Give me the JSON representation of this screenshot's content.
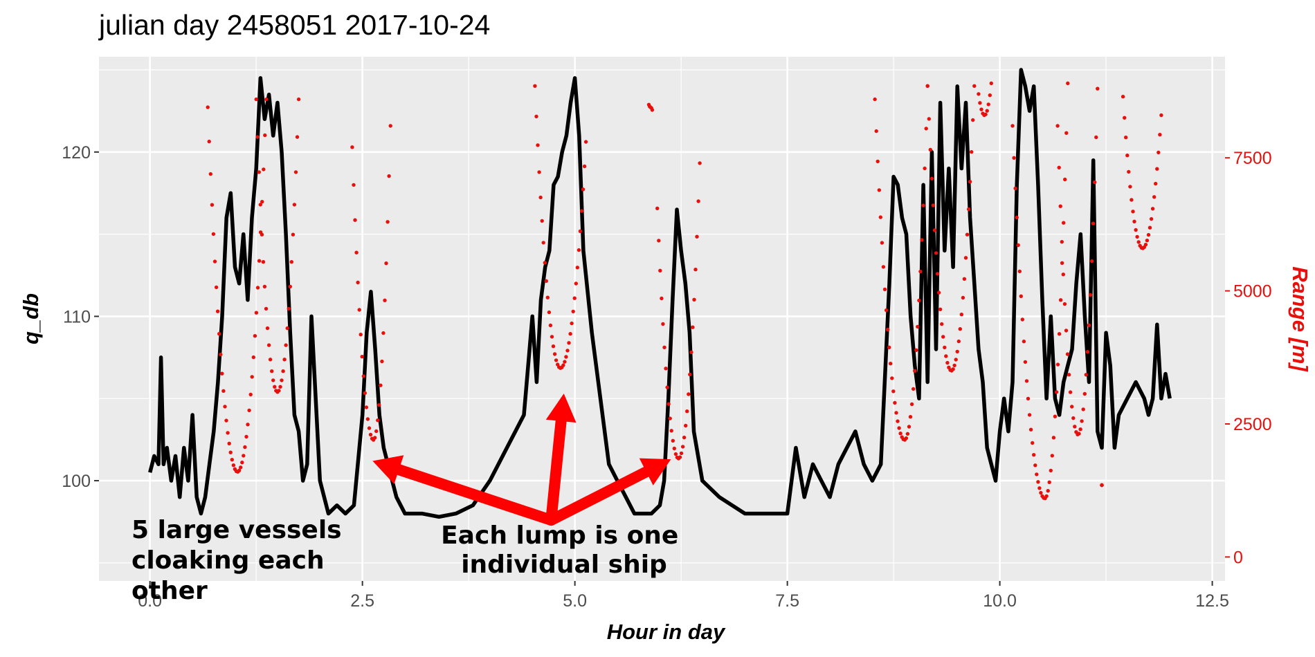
{
  "chart_data": {
    "type": "line",
    "title": "julian day 2458051 2017-10-24",
    "xlabel": "Hour in day",
    "ylabel": "q_db",
    "y2label": "Range [m]",
    "xlim": [
      -0.6,
      12.65
    ],
    "ylim": [
      93.9,
      125.8
    ],
    "y2lim": [
      -450,
      9400
    ],
    "xticks": [
      {
        "v": 0.0,
        "label": "0.0"
      },
      {
        "v": 2.5,
        "label": "2.5"
      },
      {
        "v": 5.0,
        "label": "5.0"
      },
      {
        "v": 7.5,
        "label": "7.5"
      },
      {
        "v": 10.0,
        "label": "10.0"
      },
      {
        "v": 12.5,
        "label": "12.5"
      }
    ],
    "yticks": [
      {
        "v": 100,
        "label": "100"
      },
      {
        "v": 110,
        "label": "110"
      },
      {
        "v": 120,
        "label": "120"
      }
    ],
    "y2ticks": [
      {
        "v": 0,
        "label": "0"
      },
      {
        "v": 2500,
        "label": "2500"
      },
      {
        "v": 5000,
        "label": "5000"
      },
      {
        "v": 7500,
        "label": "7500"
      }
    ],
    "grid": true,
    "colors": {
      "panel": "#ebebeb",
      "grid": "#ffffff",
      "line": "#000000",
      "points": "#e8100c",
      "arrow": "#ff0000",
      "right_axis": "#e8100c"
    },
    "series": [
      {
        "kind": "line",
        "axis": "left",
        "x": [
          0.0,
          0.05,
          0.1,
          0.13,
          0.16,
          0.2,
          0.25,
          0.3,
          0.35,
          0.4,
          0.45,
          0.5,
          0.55,
          0.6,
          0.65,
          0.7,
          0.75,
          0.8,
          0.85,
          0.9,
          0.95,
          1.0,
          1.05,
          1.1,
          1.15,
          1.2,
          1.25,
          1.3,
          1.35,
          1.4,
          1.45,
          1.5,
          1.55,
          1.6,
          1.65,
          1.7,
          1.75,
          1.8,
          1.85,
          1.9,
          2.0,
          2.1,
          2.2,
          2.3,
          2.4,
          2.5,
          2.55,
          2.6,
          2.65,
          2.7,
          2.75,
          2.8,
          2.9,
          3.0,
          3.2,
          3.4,
          3.6,
          3.8,
          4.0,
          4.2,
          4.4,
          4.5,
          4.55,
          4.6,
          4.65,
          4.7,
          4.75,
          4.8,
          4.85,
          4.9,
          4.95,
          5.0,
          5.05,
          5.1,
          5.2,
          5.3,
          5.4,
          5.5,
          5.6,
          5.7,
          5.8,
          5.9,
          6.0,
          6.05,
          6.1,
          6.15,
          6.2,
          6.25,
          6.3,
          6.35,
          6.4,
          6.5,
          6.7,
          7.0,
          7.3,
          7.5,
          7.6,
          7.7,
          7.8,
          7.9,
          8.0,
          8.1,
          8.2,
          8.3,
          8.4,
          8.5,
          8.6,
          8.7,
          8.75,
          8.8,
          8.85,
          8.9,
          8.95,
          9.0,
          9.05,
          9.1,
          9.15,
          9.2,
          9.25,
          9.3,
          9.35,
          9.4,
          9.45,
          9.5,
          9.55,
          9.6,
          9.65,
          9.7,
          9.75,
          9.8,
          9.85,
          9.9,
          9.95,
          10.0,
          10.05,
          10.1,
          10.15,
          10.2,
          10.25,
          10.3,
          10.35,
          10.4,
          10.45,
          10.5,
          10.55,
          10.6,
          10.65,
          10.7,
          10.75,
          10.8,
          10.85,
          10.9,
          10.95,
          11.0,
          11.05,
          11.1,
          11.15,
          11.2,
          11.25,
          11.3,
          11.35,
          11.4,
          11.5,
          11.6,
          11.7,
          11.75,
          11.8,
          11.85,
          11.9,
          11.95,
          12.0
        ],
        "y": [
          100.5,
          101.5,
          101.0,
          107.5,
          101.0,
          102.0,
          100.0,
          101.5,
          99.0,
          102.0,
          100.0,
          104.0,
          99.0,
          98.0,
          99.0,
          101.0,
          103.0,
          106.0,
          110.0,
          116.0,
          117.5,
          113.0,
          112.0,
          115.0,
          111.0,
          116.0,
          119.0,
          124.5,
          122.0,
          123.5,
          121.0,
          123.0,
          120.0,
          115.0,
          109.0,
          104.0,
          103.0,
          100.0,
          101.0,
          110.0,
          100.0,
          98.0,
          98.5,
          98.0,
          98.5,
          104.0,
          109.0,
          111.5,
          108.0,
          104.0,
          102.0,
          101.0,
          99.0,
          98.0,
          98.0,
          97.8,
          98.0,
          98.5,
          100.0,
          102.0,
          104.0,
          110.0,
          106.0,
          111.0,
          113.0,
          114.0,
          118.0,
          118.5,
          120.0,
          121.0,
          123.0,
          124.5,
          121.0,
          114.0,
          109.0,
          105.0,
          101.0,
          100.0,
          99.0,
          98.0,
          98.0,
          98.0,
          98.5,
          100.0,
          105.0,
          111.0,
          116.5,
          114.0,
          112.0,
          109.0,
          103.0,
          100.0,
          99.0,
          98.0,
          98.0,
          98.0,
          102.0,
          99.0,
          101.0,
          100.0,
          99.0,
          101.0,
          102.0,
          103.0,
          101.0,
          100.0,
          101.0,
          112.0,
          118.5,
          118.0,
          116.0,
          115.0,
          110.0,
          107.0,
          105.0,
          118.0,
          106.0,
          120.0,
          108.0,
          123.0,
          114.0,
          119.0,
          113.0,
          124.0,
          119.0,
          123.0,
          116.0,
          112.0,
          108.0,
          106.0,
          102.0,
          101.0,
          100.0,
          103.0,
          105.0,
          103.0,
          106.0,
          118.0,
          125.0,
          124.0,
          122.5,
          124.0,
          118.0,
          111.0,
          105.0,
          110.0,
          105.0,
          104.0,
          106.0,
          107.0,
          108.0,
          112.0,
          115.0,
          110.0,
          106.0,
          119.5,
          103.0,
          102.0,
          109.0,
          107.0,
          102.0,
          104.0,
          105.0,
          106.0,
          105.0,
          104.0,
          105.0,
          109.5,
          105.0,
          106.5,
          105.0
        ],
        "color": "#000000"
      },
      {
        "kind": "points",
        "axis": "right",
        "segments": [
          {
            "x": [
              0.68,
              1.03,
              1.37
            ],
            "y": [
              8450,
              1600,
              8600
            ]
          },
          {
            "x": [
              1.25,
              1.5,
              1.75
            ],
            "y": [
              8600,
              3100,
              8600
            ]
          },
          {
            "x": [
              2.38,
              2.63,
              2.83
            ],
            "y": [
              7700,
              2200,
              8100
            ]
          },
          {
            "x": [
              4.53,
              4.83,
              5.13
            ],
            "y": [
              8850,
              3550,
              7800
            ]
          },
          {
            "x": [
              5.87,
              5.89,
              5.91
            ],
            "y": [
              8500,
              8450,
              8400
            ]
          },
          {
            "x": [
              5.97,
              6.22,
              6.47
            ],
            "y": [
              6550,
              1850,
              7400
            ]
          },
          {
            "x": [
              8.53,
              8.88,
              9.15
            ],
            "y": [
              8600,
              2200,
              8850
            ]
          },
          {
            "x": [
              9.15,
              9.43,
              9.7
            ],
            "y": [
              8850,
              3500,
              8850
            ]
          },
          {
            "x": [
              9.75,
              9.82,
              9.9
            ],
            "y": [
              8700,
              8300,
              8900
            ]
          },
          {
            "x": [
              10.15,
              10.53,
              10.8
            ],
            "y": [
              8100,
              1100,
              8900
            ]
          },
          {
            "x": [
              10.68,
              10.92,
              11.15
            ],
            "y": [
              8100,
              2300,
              8800
            ]
          },
          {
            "x": [
              11.2,
              11.2,
              11.2
            ],
            "y": [
              1350,
              1350,
              1350
            ]
          },
          {
            "x": [
              11.45,
              11.68,
              11.9
            ],
            "y": [
              8650,
              5800,
              8300
            ]
          }
        ],
        "color": "#e8100c"
      }
    ],
    "annotations": [
      {
        "lines": [
          "5 large vessels",
          "cloaking each",
          "other"
        ]
      },
      {
        "lines": [
          "Each lump is one",
          "individual ship"
        ]
      }
    ]
  }
}
